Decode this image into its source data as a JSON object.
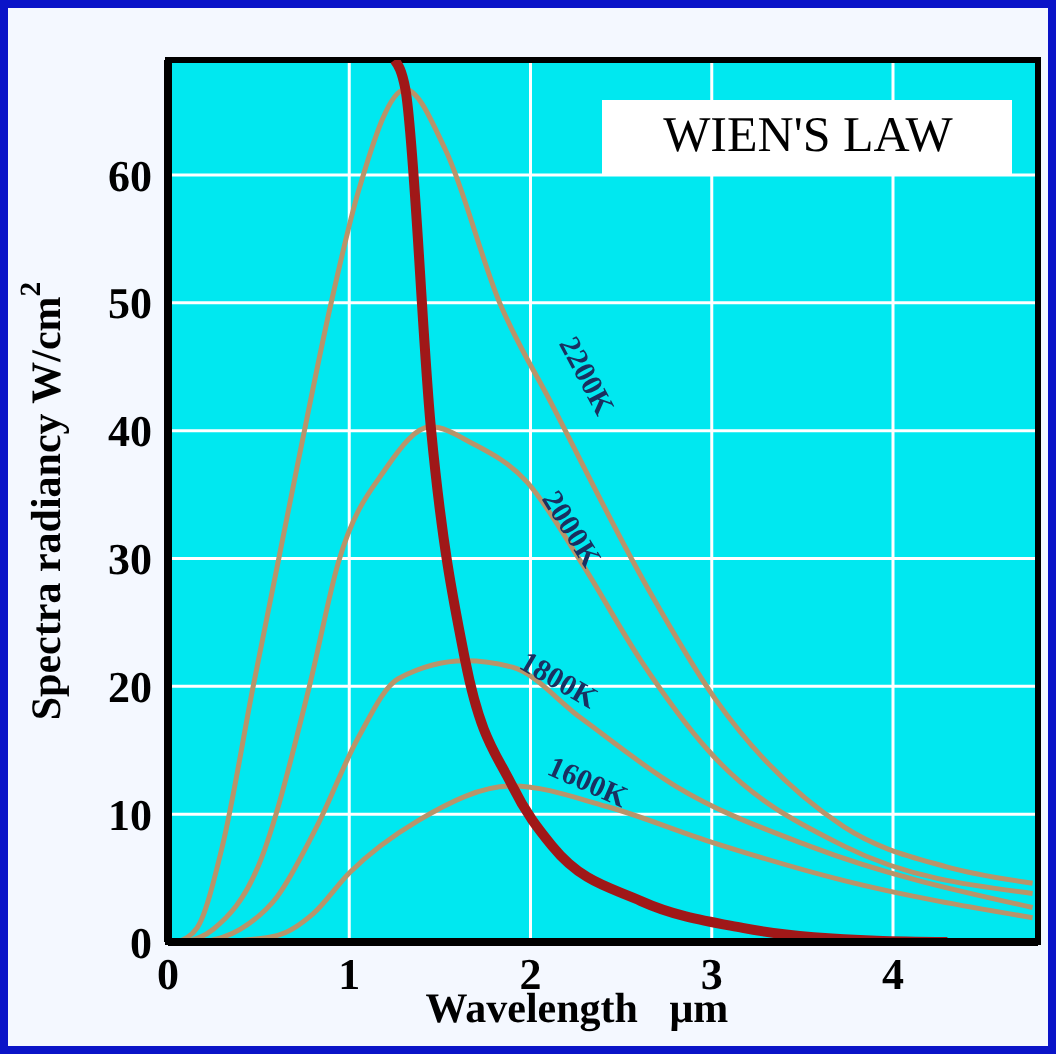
{
  "chart_data": {
    "type": "line",
    "title": "WIEN'S LAW",
    "xlabel": "Wavelength   μm",
    "ylabel": "Spectra radiancy  W/cm$^{2}$",
    "xlim": [
      0,
      4.8
    ],
    "xticks": [
      0,
      1,
      2,
      3,
      4
    ],
    "ylim": [
      0,
      69
    ],
    "yticks": [
      0,
      10,
      20,
      30,
      40,
      50,
      60
    ],
    "grid": true,
    "legend": false,
    "marker": "none",
    "line_style": "solid",
    "series": [
      {
        "name": "2200K",
        "color": "#b8946a",
        "x": [
          0.05,
          0.16,
          0.3,
          0.47,
          0.71,
          0.9,
          1.05,
          1.31,
          1.53,
          1.83,
          2.12,
          2.65,
          3.02,
          3.73,
          4.29,
          4.77
        ],
        "values": [
          0,
          1.1,
          7.5,
          20,
          37,
          50,
          58.7,
          66.7,
          62,
          50,
          42,
          27.6,
          19,
          9,
          5.9,
          4.6
        ]
      },
      {
        "name": "2000K",
        "color": "#b8946a",
        "x": [
          0.1,
          0.25,
          0.5,
          0.78,
          0.94,
          1.2,
          1.45,
          1.68,
          1.98,
          2.28,
          2.61,
          2.98,
          3.73,
          4.77
        ],
        "values": [
          0,
          1,
          6,
          20,
          29.7,
          37,
          40.3,
          39,
          36,
          29.7,
          22,
          15,
          7.5,
          3.8
        ]
      },
      {
        "name": "1800K",
        "color": "#b8946a",
        "x": [
          0.2,
          0.4,
          0.6,
          0.82,
          1.05,
          1.27,
          1.64,
          1.9,
          2.28,
          2.8,
          3.54,
          4.77
        ],
        "values": [
          0,
          1,
          3.5,
          9,
          16,
          20.6,
          22,
          21.5,
          17.5,
          12.2,
          7.5,
          2.7
        ]
      },
      {
        "name": "1600K",
        "color": "#b8946a",
        "x": [
          0.3,
          0.6,
          0.8,
          1.0,
          1.38,
          1.9,
          2.42,
          2.98,
          3.73,
          4.77
        ],
        "values": [
          0,
          0.5,
          2.2,
          5.4,
          9.5,
          12.2,
          10.6,
          7.9,
          4.8,
          1.9
        ]
      },
      {
        "color": "#a01818",
        "x": [
          1.25,
          1.31,
          1.45,
          1.64,
          1.9,
          2.12,
          2.61,
          3.17,
          3.91,
          4.3
        ],
        "values": [
          69,
          66.7,
          40.3,
          22,
          12.2,
          7.5,
          3.2,
          1.1,
          0.1,
          0
        ]
      }
    ]
  }
}
